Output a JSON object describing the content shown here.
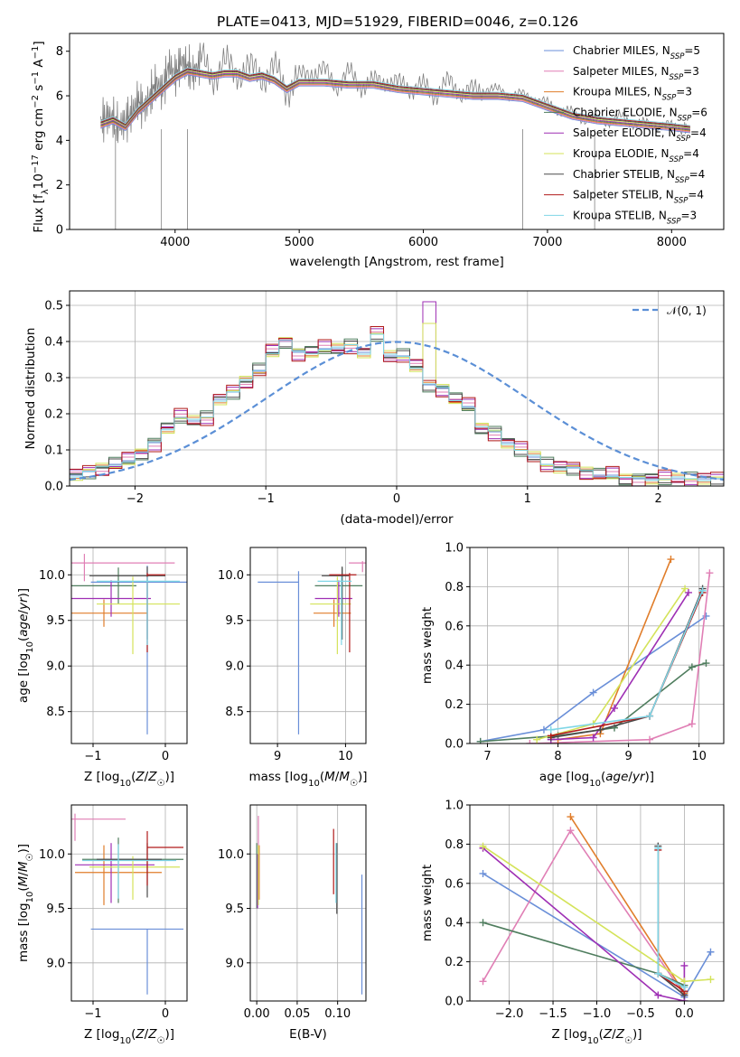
{
  "figure_title": "PLATE=0413, MJD=51929, FIBERID=0046, z=0.126",
  "models": [
    {
      "name": "Chabrier MILES",
      "nssp": "5",
      "color": "#6a8fd8"
    },
    {
      "name": "Salpeter MILES",
      "nssp": "3",
      "color": "#e07fb5"
    },
    {
      "name": "Kroupa MILES",
      "nssp": "3",
      "color": "#e07d2a"
    },
    {
      "name": "Chabrier ELODIE",
      "nssp": "6",
      "color": "#4f7d5e"
    },
    {
      "name": "Salpeter ELODIE",
      "nssp": "4",
      "color": "#9e2fb4"
    },
    {
      "name": "Kroupa ELODIE",
      "nssp": "4",
      "color": "#d4e35a"
    },
    {
      "name": "Chabrier STELIB",
      "nssp": "4",
      "color": "#4a4a4a"
    },
    {
      "name": "Salpeter STELIB",
      "nssp": "4",
      "color": "#b01a1a"
    },
    {
      "name": "Kroupa STELIB",
      "nssp": "3",
      "color": "#7fd6e6"
    }
  ],
  "chart_data": [
    {
      "type": "line",
      "id": "spectrum",
      "xlabel": "wavelength [Angstrom, rest frame]",
      "ylabel": "Flux [f_λ 10^-17 erg cm^-2 s^-1 A^-1]",
      "xlim": [
        3150,
        8420
      ],
      "ylim": [
        0,
        8.8
      ],
      "xticks": [
        4000,
        5000,
        6000,
        7000,
        8000
      ],
      "yticks": [
        0,
        2,
        4,
        6,
        8
      ],
      "data_color": "#808080",
      "data_x": [
        3400,
        3450,
        3500,
        3550,
        3600,
        3650,
        3700,
        3750,
        3800,
        3850,
        3900,
        3950,
        4000,
        4050,
        4100,
        4150,
        4200,
        4300,
        4400,
        4500,
        4600,
        4700,
        4800,
        4900,
        5000,
        5100,
        5200,
        5300,
        5400,
        5500,
        5600,
        5700,
        5800,
        5900,
        6000,
        6100,
        6200,
        6300,
        6400,
        6500,
        6600,
        6700,
        6800,
        6900,
        7000,
        7100,
        7200,
        7300,
        7400,
        7500,
        7600,
        7700,
        7800,
        7900,
        8000,
        8100,
        8150
      ],
      "data_y": [
        4.8,
        5.1,
        5.0,
        4.6,
        4.9,
        5.2,
        5.8,
        5.4,
        6.0,
        6.6,
        6.2,
        7.4,
        6.9,
        7.6,
        7.3,
        7.0,
        7.5,
        7.1,
        7.2,
        7.3,
        7.0,
        7.1,
        7.0,
        6.5,
        6.7,
        7.2,
        7.0,
        6.6,
        6.9,
        6.6,
        6.5,
        6.8,
        6.4,
        6.5,
        6.3,
        6.2,
        6.5,
        6.3,
        6.1,
        6.4,
        6.2,
        6.1,
        6.0,
        5.9,
        5.6,
        5.4,
        5.2,
        5.0,
        4.9,
        4.9,
        5.0,
        4.8,
        4.7,
        4.7,
        4.6,
        4.6,
        4.5
      ],
      "model_x": [
        3400,
        3500,
        3600,
        3700,
        3800,
        3900,
        4000,
        4100,
        4200,
        4300,
        4400,
        4500,
        4600,
        4700,
        4800,
        4900,
        5000,
        5200,
        5400,
        5600,
        5800,
        6000,
        6200,
        6400,
        6600,
        6800,
        7000,
        7200,
        7400,
        7600,
        7800,
        8000,
        8150
      ],
      "model_y": [
        4.7,
        4.9,
        4.6,
        5.3,
        5.8,
        6.3,
        6.8,
        7.1,
        7.0,
        6.9,
        7.0,
        7.0,
        6.8,
        6.9,
        6.7,
        6.3,
        6.6,
        6.6,
        6.5,
        6.5,
        6.3,
        6.2,
        6.1,
        6.0,
        6.0,
        5.9,
        5.5,
        5.1,
        4.9,
        4.8,
        4.7,
        4.6,
        4.5
      ]
    },
    {
      "type": "bar",
      "id": "residuals",
      "xlabel": "(data-model)/error",
      "ylabel": "Normed distribution",
      "xlim": [
        -2.5,
        2.5
      ],
      "ylim": [
        0,
        0.54
      ],
      "xticks": [
        -2,
        -1,
        0,
        1,
        2
      ],
      "yticks": [
        0.0,
        0.1,
        0.2,
        0.3,
        0.4,
        0.5
      ],
      "legend": "𝒩(0, 1)",
      "bin_width": 0.1,
      "bin_start": -2.5,
      "hist": [
        0.03,
        0.03,
        0.04,
        0.05,
        0.05,
        0.06,
        0.06,
        0.06,
        0.07,
        0.08,
        0.09,
        0.11,
        0.12,
        0.14,
        0.16,
        0.17,
        0.19,
        0.2,
        0.18,
        0.22,
        0.19,
        0.23,
        0.24,
        0.25,
        0.26,
        0.28,
        0.29,
        0.31,
        0.32,
        0.35,
        0.37,
        0.39,
        0.4,
        0.38,
        0.37,
        0.36,
        0.37,
        0.38,
        0.38,
        0.37,
        0.38,
        0.37,
        0.39,
        0.38,
        0.37,
        0.36,
        0.42,
        0.37,
        0.36,
        0.37,
        0.36,
        0.35,
        0.33,
        0.3,
        0.28,
        0.28,
        0.27,
        0.26,
        0.24,
        0.23,
        0.22,
        0.2,
        0.16,
        0.14,
        0.15,
        0.13,
        0.12,
        0.11,
        0.1,
        0.09,
        0.08,
        0.08,
        0.06,
        0.05,
        0.05,
        0.04,
        0.05,
        0.04,
        0.04,
        0.03,
        0.03,
        0.03,
        0.03,
        0.02,
        0.02,
        0.02,
        0.02,
        0.02,
        0.02,
        0.02,
        0.02,
        0.02,
        0.02,
        0.02,
        0.02,
        0.02,
        0.02,
        0.02,
        0.02,
        0.02
      ],
      "jitter": [
        0.0,
        0.01,
        -0.01,
        0.02,
        -0.02,
        0.015,
        -0.015,
        0.025,
        -0.005
      ]
    },
    {
      "type": "scatter",
      "id": "age_vs_Z",
      "xlabel": "Z [log10(Z/Z☉)]",
      "ylabel": "age  [log10(age/yr)]",
      "xlim": [
        -1.3,
        0.3
      ],
      "ylim": [
        8.15,
        10.3
      ],
      "xticks": [
        -1,
        0
      ],
      "yticks": [
        8.5,
        9.0,
        9.5,
        10.0
      ],
      "points": [
        {
          "x": -0.25,
          "y": 9.92,
          "xerr": [
            0.78,
            0.9
          ],
          "yerr": [
            1.67,
            0.18
          ]
        },
        {
          "x": -1.12,
          "y": 10.13,
          "xerr": [
            1.2,
            1.25
          ],
          "yerr": [
            0.2,
            0.1
          ]
        },
        {
          "x": -0.85,
          "y": 9.58,
          "xerr": [
            0.6,
            0.6
          ],
          "yerr": [
            0.15,
            0.15
          ]
        },
        {
          "x": -0.65,
          "y": 9.88,
          "xerr": [
            0.65,
            0.25
          ],
          "yerr": [
            0.2,
            0.2
          ]
        },
        {
          "x": -0.75,
          "y": 9.74,
          "xerr": [
            0.55,
            0.55
          ],
          "yerr": [
            0.2,
            0.2
          ]
        },
        {
          "x": -0.45,
          "y": 9.68,
          "xerr": [
            0.5,
            0.65
          ],
          "yerr": [
            0.55,
            0.3
          ]
        },
        {
          "x": -0.25,
          "y": 9.99,
          "xerr": [
            0.8,
            0.25
          ],
          "yerr": [
            0.7,
            0.1
          ]
        },
        {
          "x": -0.25,
          "y": 10.0,
          "xerr": [
            0.0,
            0.25
          ],
          "yerr": [
            0.85,
            0.02
          ]
        },
        {
          "x": -0.25,
          "y": 9.93,
          "xerr": [
            0.7,
            0.45
          ],
          "yerr": [
            0.7,
            0.05
          ]
        }
      ]
    },
    {
      "type": "scatter",
      "id": "age_vs_mass",
      "xlabel": "mass [log10(M/M☉)]",
      "ylabel": "",
      "xlim": [
        8.6,
        10.3
      ],
      "ylim": [
        8.15,
        10.3
      ],
      "xticks": [
        9,
        10
      ],
      "yticks": [
        8.5,
        9.0,
        9.5,
        10.0
      ],
      "points": [
        {
          "x": 9.31,
          "y": 9.92,
          "xerr": [
            0.6,
            0.0
          ],
          "yerr": [
            1.67,
            0.12
          ]
        },
        {
          "x": 10.25,
          "y": 10.13,
          "xerr": [
            0.2,
            0.05
          ],
          "yerr": [
            0.1,
            0.02
          ]
        },
        {
          "x": 9.83,
          "y": 9.58,
          "xerr": [
            0.3,
            0.25
          ],
          "yerr": [
            0.15,
            0.15
          ]
        },
        {
          "x": 9.95,
          "y": 9.88,
          "xerr": [
            0.4,
            0.3
          ],
          "yerr": [
            0.2,
            0.2
          ]
        },
        {
          "x": 9.9,
          "y": 9.74,
          "xerr": [
            0.35,
            0.2
          ],
          "yerr": [
            0.2,
            0.2
          ]
        },
        {
          "x": 9.88,
          "y": 9.68,
          "xerr": [
            0.4,
            0.2
          ],
          "yerr": [
            0.55,
            0.3
          ]
        },
        {
          "x": 9.95,
          "y": 9.99,
          "xerr": [
            0.3,
            0.1
          ],
          "yerr": [
            0.7,
            0.1
          ]
        },
        {
          "x": 10.06,
          "y": 10.0,
          "xerr": [
            0.3,
            0.1
          ],
          "yerr": [
            0.85,
            0.02
          ]
        },
        {
          "x": 9.94,
          "y": 9.93,
          "xerr": [
            0.35,
            0.15
          ],
          "yerr": [
            0.7,
            0.05
          ]
        }
      ]
    },
    {
      "type": "line",
      "id": "weight_vs_age",
      "xlabel": "age  [log10(age/yr)]",
      "ylabel": "mass weight",
      "xlim": [
        6.75,
        10.35
      ],
      "ylim": [
        0,
        1.0
      ],
      "xticks": [
        7,
        8,
        9,
        10
      ],
      "yticks": [
        0.0,
        0.2,
        0.4,
        0.6,
        0.8,
        1.0
      ],
      "series": [
        {
          "x": [
            6.9,
            7.8,
            8.5,
            10.1
          ],
          "y": [
            0.01,
            0.07,
            0.26,
            0.65
          ]
        },
        {
          "x": 8.0,
          "y": 0,
          "skip": true
        },
        {
          "x": [
            7.6,
            9.3,
            9.9,
            10.15
          ],
          "y": [
            0.0,
            0.02,
            0.1,
            0.87
          ]
        },
        {
          "x": [
            8.0,
            8.6,
            9.6
          ],
          "y": [
            0.02,
            0.05,
            0.94
          ]
        },
        {
          "x": [
            6.9,
            8.0,
            8.8,
            9.9,
            10.1
          ],
          "y": [
            0.01,
            0.04,
            0.08,
            0.39,
            0.41
          ]
        },
        {
          "x": [
            7.9,
            8.5,
            8.8,
            9.85
          ],
          "y": [
            0.02,
            0.03,
            0.18,
            0.77
          ]
        },
        {
          "x": [
            7.7,
            8.5,
            9.8
          ],
          "y": [
            0.02,
            0.1,
            0.79
          ]
        },
        {
          "x": [
            7.9,
            8.6,
            9.3,
            10.05
          ],
          "y": [
            0.03,
            0.07,
            0.14,
            0.79
          ]
        },
        {
          "x": [
            7.9,
            9.3,
            10.05
          ],
          "y": [
            0.04,
            0.14,
            0.77
          ]
        },
        {
          "x": [
            7.9,
            9.3,
            10.05
          ],
          "y": [
            0.07,
            0.14,
            0.78
          ]
        }
      ]
    },
    {
      "type": "scatter",
      "id": "mass_vs_Z",
      "xlabel": "Z [log10(Z/Z☉)]",
      "ylabel": "mass [log10(M/M☉)]",
      "xlim": [
        -1.3,
        0.3
      ],
      "ylim": [
        8.65,
        10.45
      ],
      "xticks": [
        -1,
        0
      ],
      "yticks": [
        9.0,
        9.5,
        10.0
      ],
      "points": [
        {
          "x": -0.25,
          "y": 9.31,
          "xerr": [
            0.78,
            0.5
          ],
          "yerr": [
            0.6,
            0.0
          ]
        },
        {
          "x": -1.25,
          "y": 10.32,
          "xerr": [
            0.05,
            0.7
          ],
          "yerr": [
            0.2,
            0.05
          ]
        },
        {
          "x": -0.85,
          "y": 9.83,
          "xerr": [
            0.4,
            0.8
          ],
          "yerr": [
            0.3,
            0.25
          ]
        },
        {
          "x": -0.65,
          "y": 9.95,
          "xerr": [
            0.5,
            0.9
          ],
          "yerr": [
            0.4,
            0.2
          ]
        },
        {
          "x": -0.75,
          "y": 9.9,
          "xerr": [
            0.5,
            0.6
          ],
          "yerr": [
            0.35,
            0.2
          ]
        },
        {
          "x": -0.45,
          "y": 9.88,
          "xerr": [
            0.6,
            0.65
          ],
          "yerr": [
            0.3,
            0.1
          ]
        },
        {
          "x": -0.25,
          "y": 9.95,
          "xerr": [
            0.7,
            0.2
          ],
          "yerr": [
            0.35,
            0.15
          ]
        },
        {
          "x": -0.25,
          "y": 10.06,
          "xerr": [
            0.0,
            0.5
          ],
          "yerr": [
            0.35,
            0.15
          ]
        },
        {
          "x": -0.65,
          "y": 9.94,
          "xerr": [
            0.5,
            0.8
          ],
          "yerr": [
            0.35,
            0.15
          ]
        }
      ]
    },
    {
      "type": "scatter",
      "id": "mass_vs_ebv",
      "xlabel": "E(B-V)",
      "ylabel": "",
      "xlim": [
        -0.008,
        0.135
      ],
      "ylim": [
        8.65,
        10.45
      ],
      "xticks": [
        0.0,
        0.05,
        0.1
      ],
      "xticklabels": [
        "0.00",
        "0.05",
        "0.10"
      ],
      "yticks": [
        9.0,
        9.5,
        10.0
      ],
      "points": [
        {
          "x": 0.13,
          "y": 9.31,
          "xerr": [
            0,
            0
          ],
          "yerr": [
            0.6,
            0.5
          ]
        },
        {
          "x": 0.002,
          "y": 10.1,
          "xerr": [
            0,
            0
          ],
          "yerr": [
            0.4,
            0.25
          ]
        },
        {
          "x": 0.003,
          "y": 9.83,
          "xerr": [
            0,
            0
          ],
          "yerr": [
            0.25,
            0.25
          ]
        },
        {
          "x": 0.0,
          "y": 9.9,
          "xerr": [
            0,
            0
          ],
          "yerr": [
            0.4,
            0.2
          ]
        },
        {
          "x": 0.001,
          "y": 9.75,
          "xerr": [
            0,
            0
          ],
          "yerr": [
            0.25,
            0.25
          ]
        },
        {
          "x": 0.002,
          "y": 9.88,
          "xerr": [
            0,
            0
          ],
          "yerr": [
            0.35,
            0.2
          ]
        },
        {
          "x": 0.099,
          "y": 9.85,
          "xerr": [
            0,
            0
          ],
          "yerr": [
            0.4,
            0.25
          ]
        },
        {
          "x": 0.095,
          "y": 9.93,
          "xerr": [
            0,
            0
          ],
          "yerr": [
            0.3,
            0.3
          ]
        },
        {
          "x": 0.098,
          "y": 9.85,
          "xerr": [
            0,
            0
          ],
          "yerr": [
            0.3,
            0.25
          ]
        }
      ]
    },
    {
      "type": "line",
      "id": "weight_vs_Z",
      "xlabel": "Z [log10(Z/Z☉)]",
      "ylabel": "mass weight",
      "xlim": [
        -2.45,
        0.45
      ],
      "ylim": [
        0,
        1.0
      ],
      "xticks": [
        -2.0,
        -1.5,
        -1.0,
        -0.5,
        0.0
      ],
      "xticklabels": [
        "−2.0",
        "−1.5",
        "−1.0",
        "−0.5",
        "0.0"
      ],
      "yticks": [
        0.0,
        0.2,
        0.4,
        0.6,
        0.8,
        1.0
      ],
      "series": [
        {
          "x": [
            -2.3,
            0.0,
            0.3
          ],
          "y": [
            0.65,
            0.02,
            0.25
          ]
        },
        {
          "x": -1.3,
          "y": 0,
          "skip": true
        },
        {
          "x": [
            -2.3,
            -1.3,
            0.0
          ],
          "y": [
            0.1,
            0.87,
            0.03
          ]
        },
        {
          "x": [
            -1.3,
            0.0
          ],
          "y": [
            0.94,
            0.04
          ]
        },
        {
          "x": [
            -2.3,
            -0.3,
            0.0
          ],
          "y": [
            0.4,
            0.14,
            0.08
          ]
        },
        {
          "x": [
            -2.3,
            -0.3,
            0.0,
            0.0
          ],
          "y": [
            0.78,
            0.03,
            0.0,
            0.18
          ]
        },
        {
          "x": [
            -2.3,
            0.0,
            0.3
          ],
          "y": [
            0.79,
            0.1,
            0.11
          ]
        },
        {
          "x": [
            -0.3,
            -0.3,
            0.0
          ],
          "y": [
            0.79,
            0.14,
            0.03
          ]
        },
        {
          "x": [
            -0.3,
            -0.3,
            0.0
          ],
          "y": [
            0.77,
            0.14,
            0.05
          ]
        },
        {
          "x": [
            -0.3,
            -0.3,
            0.0
          ],
          "y": [
            0.78,
            0.14,
            0.07
          ]
        }
      ]
    }
  ]
}
